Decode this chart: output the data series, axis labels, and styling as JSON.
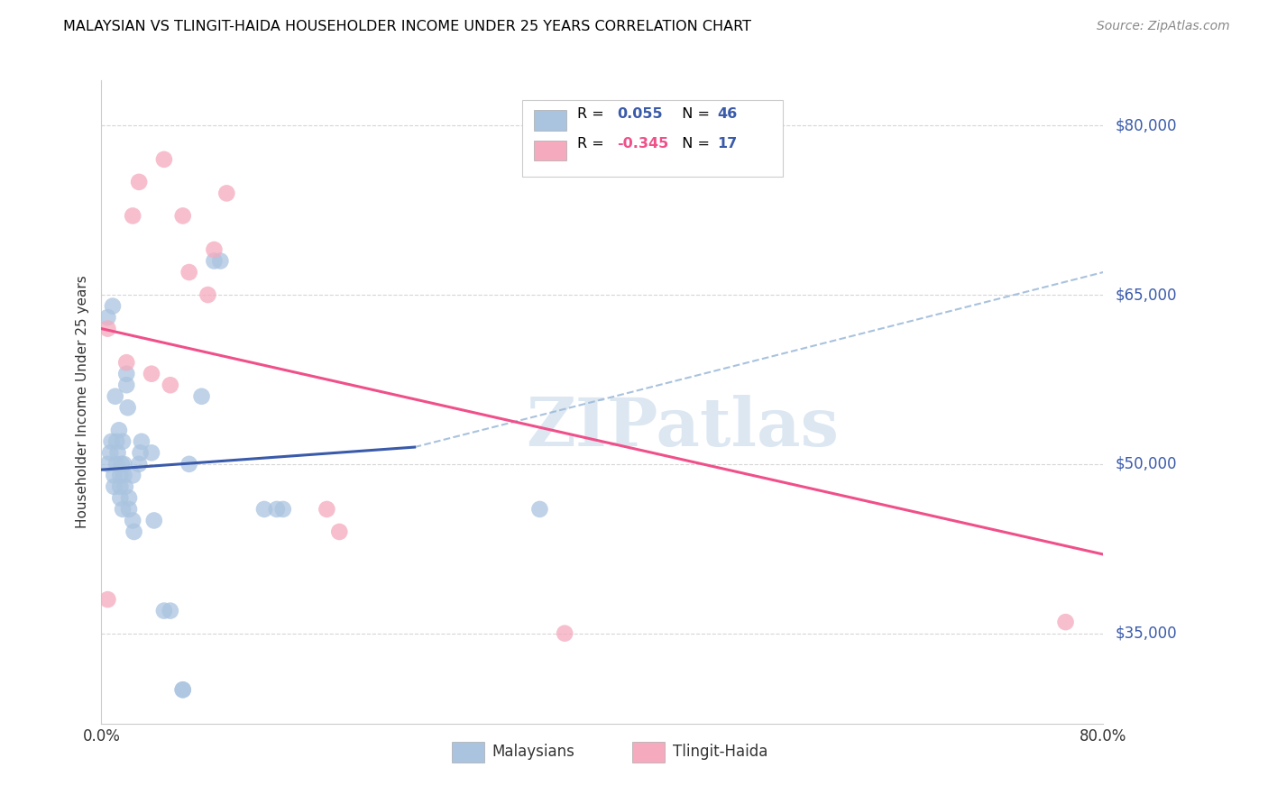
{
  "title": "MALAYSIAN VS TLINGIT-HAIDA HOUSEHOLDER INCOME UNDER 25 YEARS CORRELATION CHART",
  "source": "Source: ZipAtlas.com",
  "ylabel": "Householder Income Under 25 years",
  "xlim": [
    0.0,
    0.8
  ],
  "ylim": [
    27000,
    84000
  ],
  "xtick_positions": [
    0.0,
    0.1,
    0.2,
    0.3,
    0.4,
    0.5,
    0.6,
    0.7,
    0.8
  ],
  "xticklabels": [
    "0.0%",
    "",
    "",
    "",
    "",
    "",
    "",
    "",
    "80.0%"
  ],
  "ytick_positions": [
    35000,
    50000,
    65000,
    80000
  ],
  "ytick_labels": [
    "$35,000",
    "$50,000",
    "$65,000",
    "$80,000"
  ],
  "legend_blue_R": "0.055",
  "legend_blue_N": "46",
  "legend_pink_R": "-0.345",
  "legend_pink_N": "17",
  "blue_scatter_color": "#aac4e0",
  "pink_scatter_color": "#f5aabe",
  "blue_line_color": "#3a5aaa",
  "pink_line_color": "#f0508a",
  "dashed_line_color": "#9ab8d8",
  "watermark_color": "#c5d8ea",
  "background_color": "#ffffff",
  "grid_color": "#cccccc",
  "blue_line_x": [
    0.0,
    0.25
  ],
  "blue_line_y": [
    49500,
    51500
  ],
  "pink_line_x": [
    0.0,
    0.8
  ],
  "pink_line_y": [
    62000,
    42000
  ],
  "dashed_line_x": [
    0.25,
    0.8
  ],
  "dashed_line_y": [
    51500,
    67000
  ],
  "malaysian_x": [
    0.005,
    0.005,
    0.007,
    0.008,
    0.009,
    0.01,
    0.01,
    0.011,
    0.012,
    0.012,
    0.013,
    0.014,
    0.015,
    0.015,
    0.015,
    0.016,
    0.017,
    0.017,
    0.018,
    0.018,
    0.019,
    0.02,
    0.02,
    0.021,
    0.022,
    0.022,
    0.025,
    0.025,
    0.026,
    0.03,
    0.031,
    0.032,
    0.04,
    0.042,
    0.05,
    0.055,
    0.065,
    0.065,
    0.07,
    0.08,
    0.09,
    0.095,
    0.13,
    0.145,
    0.14,
    0.35
  ],
  "malaysian_y": [
    50000,
    63000,
    51000,
    52000,
    64000,
    49000,
    48000,
    56000,
    50000,
    52000,
    51000,
    53000,
    49000,
    48000,
    47000,
    50000,
    46000,
    52000,
    50000,
    49000,
    48000,
    57000,
    58000,
    55000,
    47000,
    46000,
    45000,
    49000,
    44000,
    50000,
    51000,
    52000,
    51000,
    45000,
    37000,
    37000,
    30000,
    30000,
    50000,
    56000,
    68000,
    68000,
    46000,
    46000,
    46000,
    46000
  ],
  "tlingithaida_x": [
    0.005,
    0.005,
    0.02,
    0.025,
    0.03,
    0.04,
    0.05,
    0.055,
    0.065,
    0.07,
    0.085,
    0.09,
    0.1,
    0.18,
    0.19,
    0.37,
    0.77
  ],
  "tlingithaida_y": [
    62000,
    38000,
    59000,
    72000,
    75000,
    58000,
    77000,
    57000,
    72000,
    67000,
    65000,
    69000,
    74000,
    46000,
    44000,
    35000,
    36000
  ]
}
